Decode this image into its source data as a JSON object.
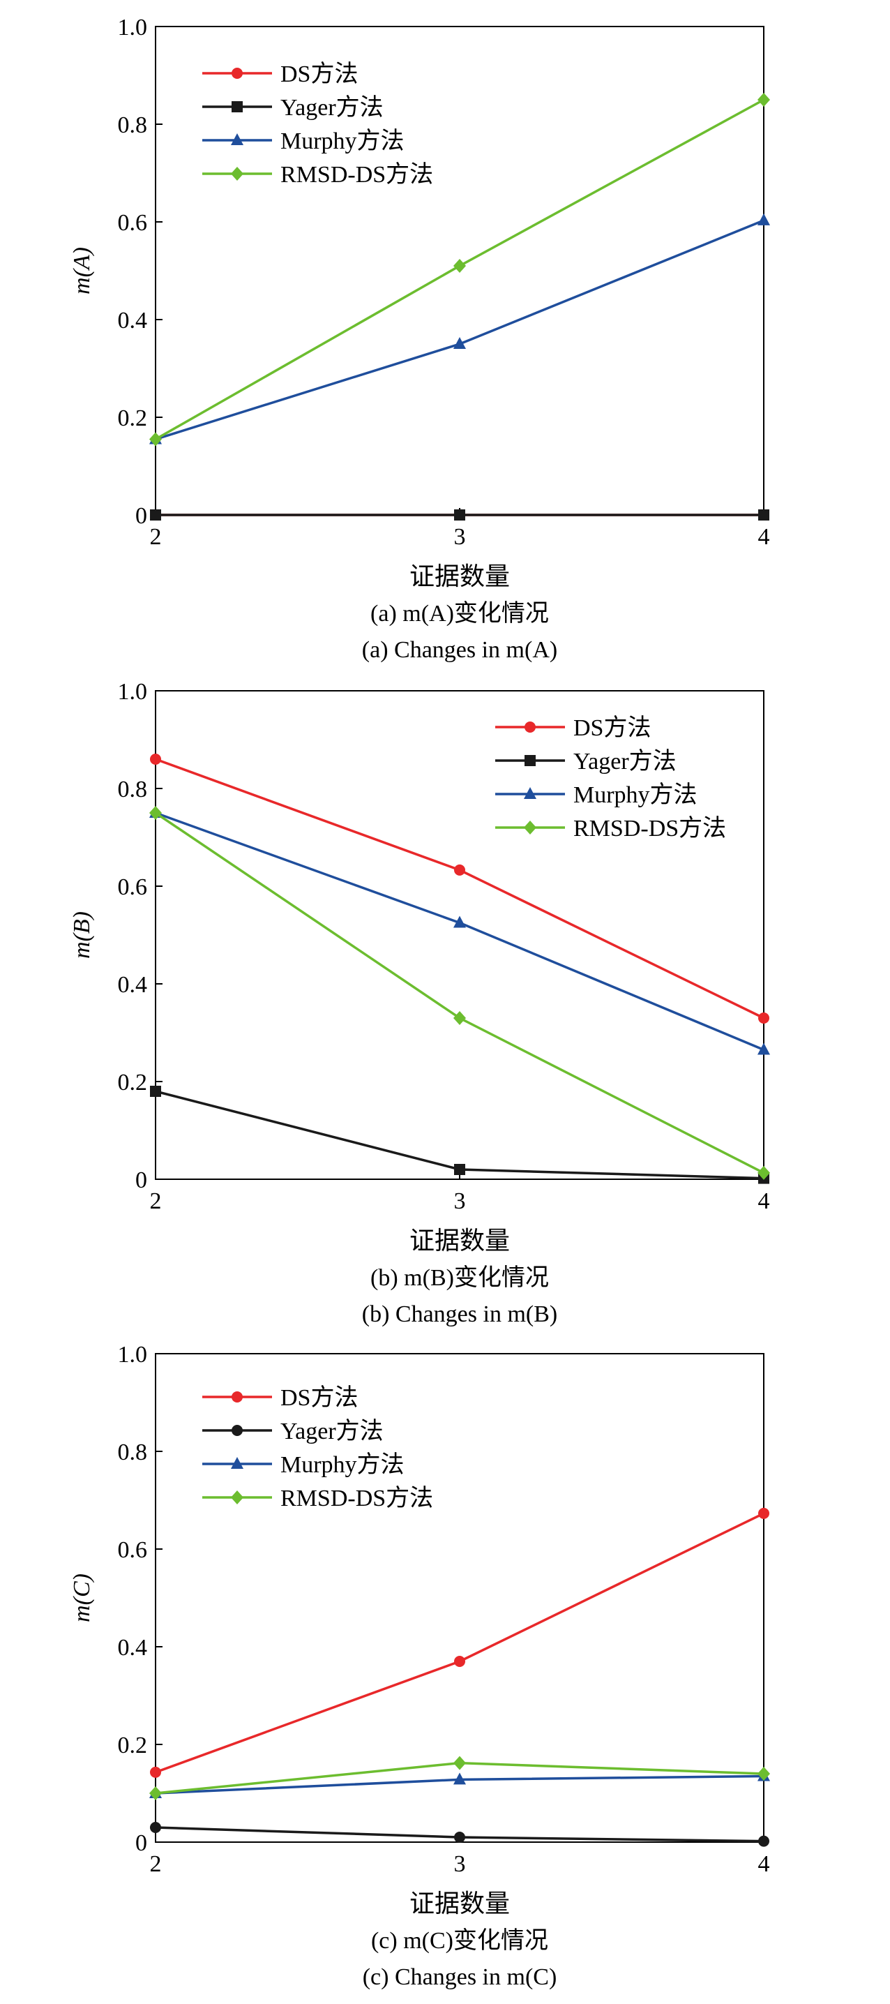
{
  "chart_data": [
    {
      "type": "line",
      "ylabel": "m(A)",
      "xlabel": "证据数量",
      "caption_cn": "(a) m(A)变化情况",
      "caption_en": "(a) Changes in m(A)",
      "x": [
        2,
        3,
        4
      ],
      "xlim": [
        2,
        4
      ],
      "ylim": [
        0,
        1.0
      ],
      "yticks": [
        "0",
        "0.2",
        "0.4",
        "0.6",
        "0.8",
        "1.0"
      ],
      "xticks": [
        "2",
        "3",
        "4"
      ],
      "legend_position": "top-left",
      "series": [
        {
          "name": "DS方法",
          "color": "#e8282a",
          "marker": "circle",
          "values": [
            0,
            0,
            0
          ]
        },
        {
          "name": "Yager方法",
          "color": "#1a1a1a",
          "marker": "square",
          "values": [
            0,
            0,
            0
          ]
        },
        {
          "name": "Murphy方法",
          "color": "#1f4e9c",
          "marker": "triangle",
          "values": [
            0.155,
            0.35,
            0.603
          ]
        },
        {
          "name": "RMSD-DS方法",
          "color": "#6cbd2f",
          "marker": "diamond",
          "values": [
            0.155,
            0.51,
            0.85
          ]
        }
      ]
    },
    {
      "type": "line",
      "ylabel": "m(B)",
      "xlabel": "证据数量",
      "caption_cn": "(b) m(B)变化情况",
      "caption_en": "(b) Changes in m(B)",
      "x": [
        2,
        3,
        4
      ],
      "xlim": [
        2,
        4
      ],
      "ylim": [
        0,
        1.0
      ],
      "yticks": [
        "0",
        "0.2",
        "0.4",
        "0.6",
        "0.8",
        "1.0"
      ],
      "xticks": [
        "2",
        "3",
        "4"
      ],
      "legend_position": "top-right",
      "series": [
        {
          "name": "DS方法",
          "color": "#e8282a",
          "marker": "circle",
          "values": [
            0.86,
            0.633,
            0.33
          ]
        },
        {
          "name": "Yager方法",
          "color": "#1a1a1a",
          "marker": "square",
          "values": [
            0.18,
            0.02,
            0.002
          ]
        },
        {
          "name": "Murphy方法",
          "color": "#1f4e9c",
          "marker": "triangle",
          "values": [
            0.75,
            0.525,
            0.265
          ]
        },
        {
          "name": "RMSD-DS方法",
          "color": "#6cbd2f",
          "marker": "diamond",
          "values": [
            0.75,
            0.33,
            0.013
          ]
        }
      ]
    },
    {
      "type": "line",
      "ylabel": "m(C)",
      "xlabel": "证据数量",
      "caption_cn": "(c) m(C)变化情况",
      "caption_en": "(c) Changes in m(C)",
      "x": [
        2,
        3,
        4
      ],
      "xlim": [
        2,
        4
      ],
      "ylim": [
        0,
        1.0
      ],
      "yticks": [
        "0",
        "0.2",
        "0.4",
        "0.6",
        "0.8",
        "1.0"
      ],
      "xticks": [
        "2",
        "3",
        "4"
      ],
      "legend_position": "top-left",
      "series": [
        {
          "name": "DS方法",
          "color": "#e8282a",
          "marker": "circle",
          "values": [
            0.143,
            0.37,
            0.673
          ]
        },
        {
          "name": "Yager方法",
          "color": "#1a1a1a",
          "marker": "circle",
          "values": [
            0.03,
            0.01,
            0.002
          ]
        },
        {
          "name": "Murphy方法",
          "color": "#1f4e9c",
          "marker": "triangle",
          "values": [
            0.1,
            0.128,
            0.135
          ]
        },
        {
          "name": "RMSD-DS方法",
          "color": "#6cbd2f",
          "marker": "diamond",
          "values": [
            0.1,
            0.162,
            0.14
          ]
        }
      ]
    }
  ]
}
